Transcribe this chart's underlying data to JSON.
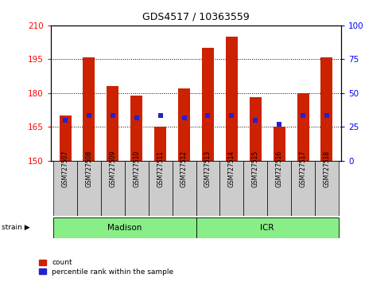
{
  "title": "GDS4517 / 10363559",
  "samples": [
    "GSM727507",
    "GSM727508",
    "GSM727509",
    "GSM727510",
    "GSM727511",
    "GSM727512",
    "GSM727513",
    "GSM727514",
    "GSM727515",
    "GSM727516",
    "GSM727517",
    "GSM727518"
  ],
  "bar_tops": [
    170,
    196,
    183,
    179,
    165,
    182,
    200,
    205,
    178,
    165,
    180,
    196
  ],
  "bar_bottom": 150,
  "blue_dots": [
    168,
    170,
    170,
    169,
    170,
    169,
    170,
    170,
    168,
    166,
    170,
    170
  ],
  "bar_color": "#cc2200",
  "dot_color": "#2222cc",
  "ylim_left": [
    150,
    210
  ],
  "yticks_left": [
    150,
    165,
    180,
    195,
    210
  ],
  "ylim_right": [
    0,
    100
  ],
  "yticks_right": [
    0,
    25,
    50,
    75,
    100
  ],
  "groups": [
    {
      "label": "Madison",
      "start": 0,
      "end": 5
    },
    {
      "label": "ICR",
      "start": 6,
      "end": 11
    }
  ],
  "group_color": "#88ee88",
  "strain_label": "strain",
  "legend_count": "count",
  "legend_percentile": "percentile rank within the sample",
  "background_color": "#ffffff",
  "plot_bg": "#ffffff",
  "sample_box_color": "#cccccc",
  "title_fontsize": 9,
  "axis_fontsize": 7.5,
  "sample_fontsize": 5.5,
  "group_fontsize": 7.5,
  "legend_fontsize": 6.5,
  "bar_width": 0.5,
  "dot_size": 4
}
